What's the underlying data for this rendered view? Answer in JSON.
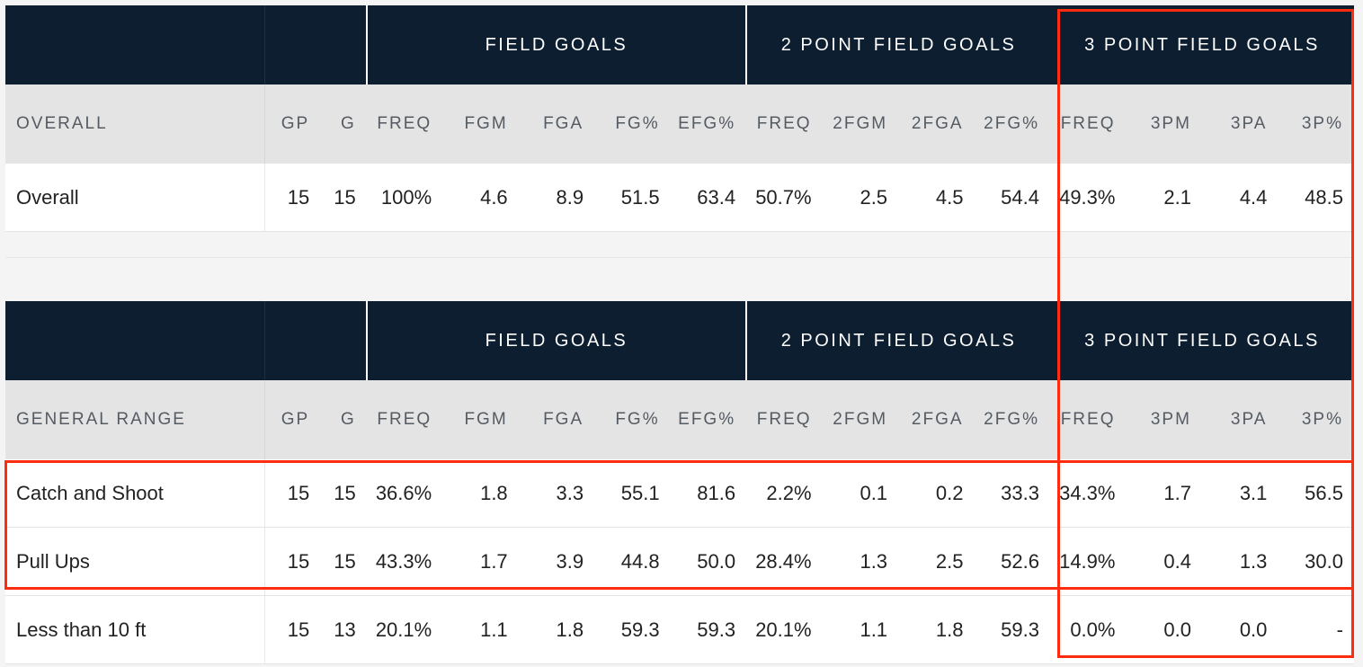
{
  "table1": {
    "groups": [
      "FIELD GOALS",
      "2 POINT FIELD GOALS",
      "3 POINT FIELD GOALS"
    ],
    "columns": [
      "OVERALL",
      "GP",
      "G",
      "FREQ",
      "FGM",
      "FGA",
      "FG%",
      "EFG%",
      "FREQ",
      "2FGM",
      "2FGA",
      "2FG%",
      "FREQ",
      "3PM",
      "3PA",
      "3P%"
    ],
    "rows": [
      [
        "Overall",
        "15",
        "15",
        "100%",
        "4.6",
        "8.9",
        "51.5",
        "63.4",
        "50.7%",
        "2.5",
        "4.5",
        "54.4",
        "49.3%",
        "2.1",
        "4.4",
        "48.5"
      ]
    ]
  },
  "table2": {
    "groups": [
      "FIELD GOALS",
      "2 POINT FIELD GOALS",
      "3 POINT FIELD GOALS"
    ],
    "columns": [
      "GENERAL RANGE",
      "GP",
      "G",
      "FREQ",
      "FGM",
      "FGA",
      "FG%",
      "EFG%",
      "FREQ",
      "2FGM",
      "2FGA",
      "2FG%",
      "FREQ",
      "3PM",
      "3PA",
      "3P%"
    ],
    "rows": [
      [
        "Catch and Shoot",
        "15",
        "15",
        "36.6%",
        "1.8",
        "3.3",
        "55.1",
        "81.6",
        "2.2%",
        "0.1",
        "0.2",
        "33.3",
        "34.3%",
        "1.7",
        "3.1",
        "56.5"
      ],
      [
        "Pull Ups",
        "15",
        "15",
        "43.3%",
        "1.7",
        "3.9",
        "44.8",
        "50.0",
        "28.4%",
        "1.3",
        "2.5",
        "52.6",
        "14.9%",
        "0.4",
        "1.3",
        "30.0"
      ],
      [
        "Less than 10 ft",
        "15",
        "13",
        "20.1%",
        "1.1",
        "1.8",
        "59.3",
        "59.3",
        "20.1%",
        "1.1",
        "1.8",
        "59.3",
        "0.0%",
        "0.0",
        "0.0",
        "-"
      ]
    ]
  },
  "highlight_color": "#ff2d0f",
  "header_bg": "#0c1e2f"
}
